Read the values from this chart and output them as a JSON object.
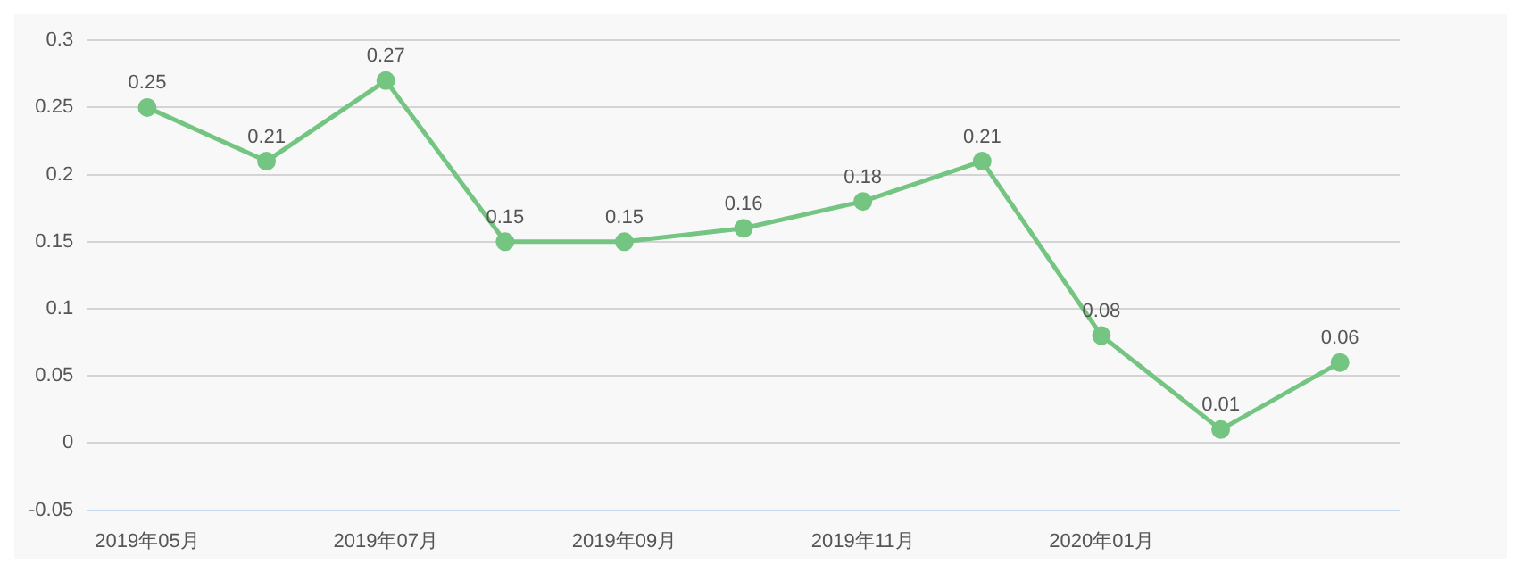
{
  "chart_data": {
    "type": "line",
    "categories": [
      "2019年05月",
      null,
      "2019年07月",
      null,
      "2019年09月",
      null,
      "2019年11月",
      null,
      "2020年01月",
      null,
      null
    ],
    "series": [
      {
        "color": "#74c581",
        "values": [
          0.25,
          0.21,
          0.27,
          0.15,
          0.15,
          0.16,
          0.18,
          0.21,
          0.08,
          0.01,
          0.06
        ]
      }
    ],
    "ylim": [
      -0.05,
      0.3
    ],
    "yticks": [
      -0.05,
      0,
      0.05,
      0.1,
      0.15,
      0.2,
      0.25,
      0.3
    ],
    "grid": "y",
    "legend": false,
    "marker": "circle",
    "line_style": "solid",
    "data_labels": true
  }
}
